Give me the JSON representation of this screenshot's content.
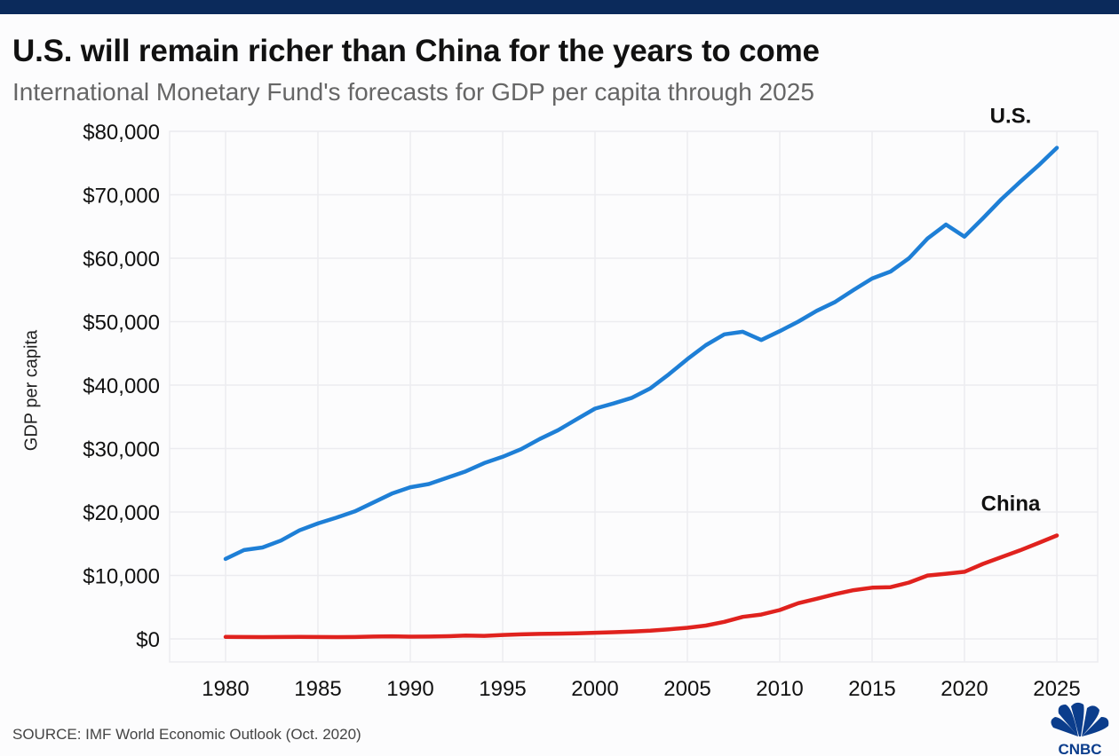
{
  "header": {
    "title": "U.S. will remain richer than China for the years to come",
    "subtitle": "International Monetary Fund's forecasts for GDP per capita through 2025"
  },
  "source": "SOURCE: IMF World Economic Outlook (Oct. 2020)",
  "logo": {
    "text": "CNBC",
    "color": "#0b3d8c"
  },
  "chart_data": {
    "type": "line",
    "title": "U.S. will remain richer than China for the years to come",
    "subtitle": "International Monetary Fund's forecasts for GDP per capita through 2025",
    "xlabel": "",
    "ylabel": "GDP per capita",
    "xlim": [
      1980,
      2025
    ],
    "ylim": [
      0,
      80000
    ],
    "grid": true,
    "x_ticks": [
      "1980",
      "1985",
      "1990",
      "1995",
      "2000",
      "2005",
      "2010",
      "2015",
      "2020",
      "2025"
    ],
    "y_ticks": [
      "$0",
      "$10,000",
      "$20,000",
      "$30,000",
      "$40,000",
      "$50,000",
      "$60,000",
      "$70,000",
      "$80,000"
    ],
    "x": [
      1980,
      1981,
      1982,
      1983,
      1984,
      1985,
      1986,
      1987,
      1988,
      1989,
      1990,
      1991,
      1992,
      1993,
      1994,
      1995,
      1996,
      1997,
      1998,
      1999,
      2000,
      2001,
      2002,
      2003,
      2004,
      2005,
      2006,
      2007,
      2008,
      2009,
      2010,
      2011,
      2012,
      2013,
      2014,
      2015,
      2016,
      2017,
      2018,
      2019,
      2020,
      2021,
      2022,
      2023,
      2024,
      2025
    ],
    "series": [
      {
        "name": "U.S.",
        "color": "#1e7fd6",
        "values": [
          12600,
          14000,
          14400,
          15500,
          17100,
          18200,
          19100,
          20100,
          21500,
          22900,
          23900,
          24400,
          25400,
          26400,
          27700,
          28700,
          29900,
          31500,
          32900,
          34600,
          36300,
          37100,
          38000,
          39500,
          41700,
          44100,
          46300,
          48000,
          48400,
          47100,
          48500,
          50000,
          51700,
          53100,
          55000,
          56800,
          57900,
          60000,
          63100,
          65300,
          63400,
          66300,
          69300,
          72000,
          74600,
          77400
        ]
      },
      {
        "name": "China",
        "color": "#e0221e",
        "values": [
          310,
          290,
          280,
          300,
          310,
          300,
          280,
          300,
          370,
          410,
          350,
          360,
          420,
          520,
          470,
          610,
          710,
          780,
          830,
          870,
          960,
          1050,
          1150,
          1290,
          1510,
          1750,
          2100,
          2690,
          3470,
          3830,
          4550,
          5620,
          6320,
          7050,
          7680,
          8070,
          8150,
          8880,
          9980,
          10260,
          10580,
          11820,
          12880,
          13950,
          15100,
          16300
        ]
      }
    ]
  }
}
